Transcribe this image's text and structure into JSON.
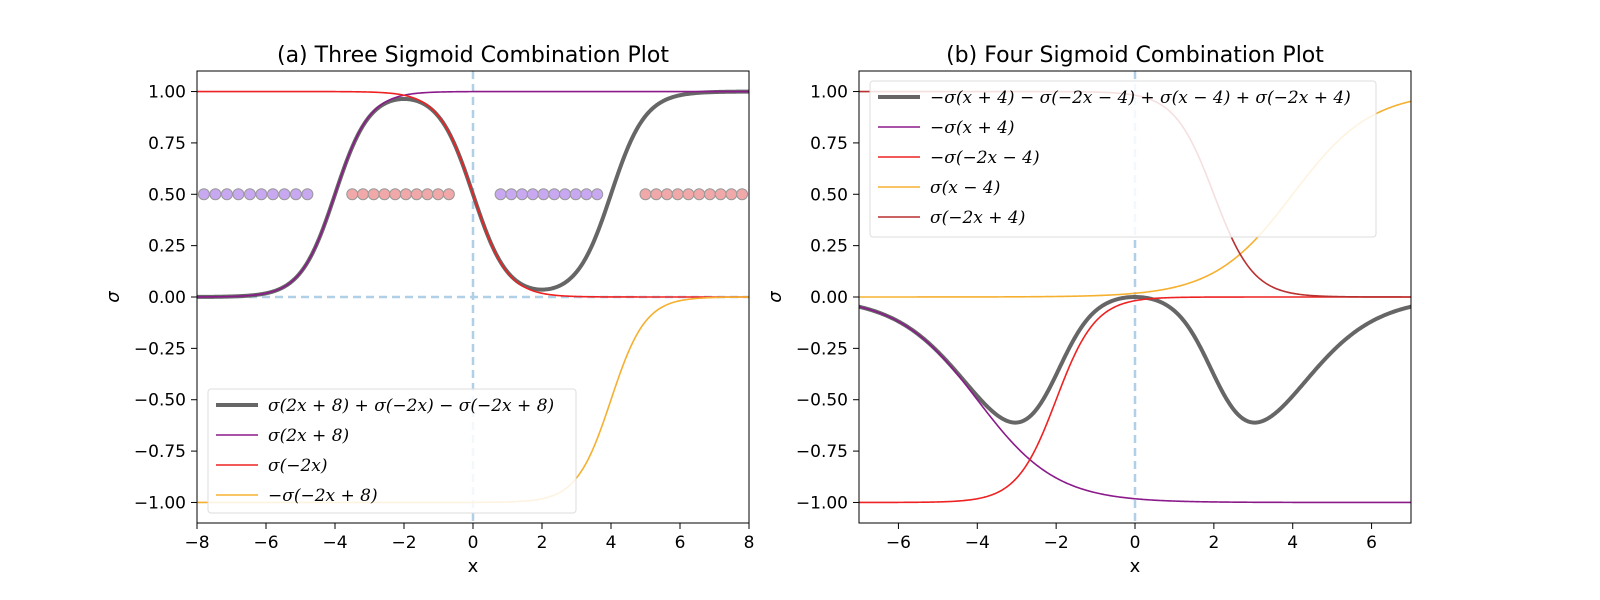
{
  "chart_data": [
    {
      "type": "line",
      "title": "(a) Three Sigmoid Combination Plot",
      "xlabel": "x",
      "ylabel": "σ",
      "xlim": [
        -8,
        8
      ],
      "ylim": [
        -1.1,
        1.1
      ],
      "xticks": [
        "−8",
        "−6",
        "−4",
        "−2",
        "0",
        "2",
        "4",
        "6",
        "8"
      ],
      "yticks": [
        "−1.00",
        "−0.75",
        "−0.50",
        "−0.25",
        "0.00",
        "0.25",
        "0.50",
        "0.75",
        "1.00"
      ],
      "legend_position": "lower-left",
      "reference_lines": {
        "x": 0,
        "y": 0,
        "color": "#b0d0e8",
        "style": "dashed"
      },
      "series": [
        {
          "name": "σ(2x + 8) + σ(−2x) − σ(−2x + 8)",
          "color": "#666666",
          "width": "thick",
          "fn": "s(2x+8)+s(-2x)-s(-2x+8)"
        },
        {
          "name": "σ(2x + 8)",
          "color": "#8b1a8b",
          "width": "thin",
          "fn": "s(2x+8)"
        },
        {
          "name": "σ(−2x)",
          "color": "#ee2222",
          "width": "thin",
          "fn": "s(-2x)"
        },
        {
          "name": "−σ(−2x + 8)",
          "color": "#f5b030",
          "width": "thin",
          "fn": "-s(-2x+8)"
        }
      ],
      "markers": [
        {
          "y": 0.5,
          "x_from": -7.8,
          "x_to": -4.8,
          "count": 10,
          "color": "#c8a8f0"
        },
        {
          "y": 0.5,
          "x_from": -3.5,
          "x_to": -0.7,
          "count": 10,
          "color": "#f0a8a8"
        },
        {
          "y": 0.5,
          "x_from": 0.8,
          "x_to": 3.6,
          "count": 10,
          "color": "#c8a8f0"
        },
        {
          "y": 0.5,
          "x_from": 5.0,
          "x_to": 7.8,
          "count": 10,
          "color": "#f0a8a8"
        }
      ]
    },
    {
      "type": "line",
      "title": "(b) Four Sigmoid Combination Plot",
      "xlabel": "x",
      "ylabel": "σ",
      "xlim": [
        -7,
        7
      ],
      "ylim": [
        -1.1,
        1.1
      ],
      "xticks": [
        "−6",
        "−4",
        "−2",
        "0",
        "2",
        "4",
        "6"
      ],
      "yticks": [
        "−1.00",
        "−0.75",
        "−0.50",
        "−0.25",
        "0.00",
        "0.25",
        "0.50",
        "0.75",
        "1.00"
      ],
      "legend_position": "upper-left",
      "reference_lines": {
        "x": 0,
        "color": "#b0d0e8",
        "style": "dashed"
      },
      "series": [
        {
          "name": "−σ(x + 4) − σ(−2x − 4) + σ(x − 4) + σ(−2x + 4)",
          "color": "#666666",
          "width": "thick",
          "fn": "-s(x+4)-s(-2x-4)+s(x-4)+s(-2x+4)"
        },
        {
          "name": "−σ(x + 4)",
          "color": "#8b1a8b",
          "width": "thin",
          "fn": "-s(x+4)"
        },
        {
          "name": "−σ(−2x − 4)",
          "color": "#ee2222",
          "width": "thin",
          "fn": "-s(-2x-4)"
        },
        {
          "name": "σ(x − 4)",
          "color": "#f5b030",
          "width": "thin",
          "fn": "s(x-4)"
        },
        {
          "name": "σ(−2x + 4)",
          "color": "#b83030",
          "width": "thin",
          "fn": "s(-2x+4)"
        }
      ]
    }
  ]
}
